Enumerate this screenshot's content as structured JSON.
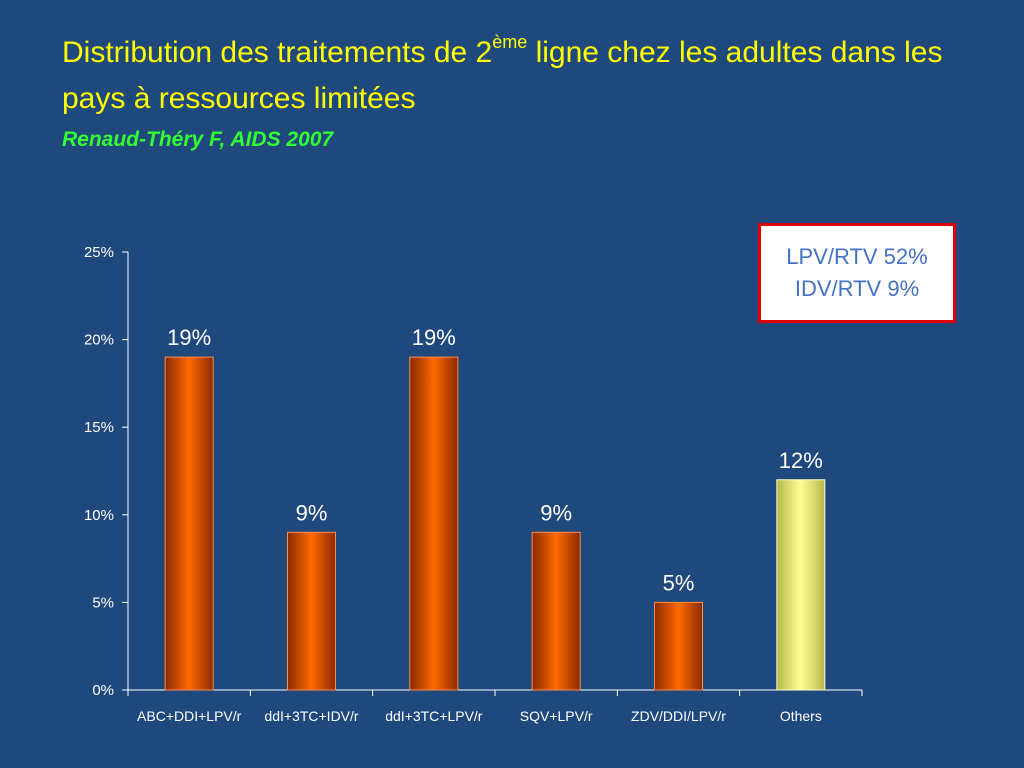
{
  "slide": {
    "title_part1": "Distribution des traitements  de 2",
    "title_sup": "ème",
    "title_part2": " ligne chez les adultes dans les pays à ressources limitées",
    "citation": "Renaud-Théry F, AIDS 2007"
  },
  "note_box": {
    "line1": "LPV/RTV 52%",
    "line2": "IDV/RTV 9%"
  },
  "chart_data": {
    "type": "bar",
    "categories": [
      "ABC+DDI+LPV/r",
      "ddI+3TC+IDV/r",
      "ddI+3TC+LPV/r",
      "SQV+LPV/r",
      "ZDV/DDI/LPV/r",
      "Others"
    ],
    "values": [
      19,
      9,
      19,
      9,
      5,
      12
    ],
    "value_labels": [
      "19%",
      "9%",
      "19%",
      "9%",
      "5%",
      "12%"
    ],
    "ylim": [
      0,
      25
    ],
    "yticks": [
      0,
      5,
      10,
      15,
      20,
      25
    ],
    "ytick_labels": [
      "0%",
      "5%",
      "10%",
      "15%",
      "20%",
      "25%"
    ],
    "bar_colors": [
      "#ff6600",
      "#ff6600",
      "#ff6600",
      "#ff6600",
      "#ff6600",
      "#ffff99"
    ],
    "label_color": "#ffffff",
    "grid": false
  }
}
